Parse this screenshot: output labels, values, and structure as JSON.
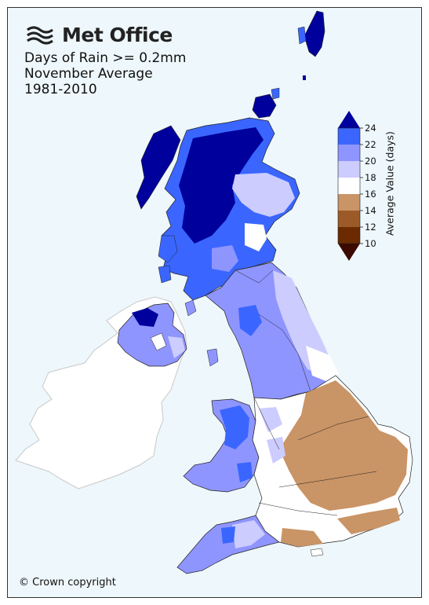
{
  "logo": {
    "text": "Met Office",
    "icon": "met-office-wave-icon"
  },
  "title": {
    "line1": "Days of Rain >= 0.2mm",
    "line2": "November Average",
    "line3": "1981-2010"
  },
  "legend": {
    "label": "Average Value (days)",
    "ticks": [
      "24",
      "22",
      "20",
      "18",
      "16",
      "14",
      "12",
      "10"
    ],
    "colors": {
      "above24": "#00009c",
      "22_24": "#3a66ff",
      "20_22": "#8f95ff",
      "18_20": "#ccccff",
      "16_18": "#ffffff",
      "14_16": "#c99466",
      "12_14": "#9b5a27",
      "10_12": "#6b2a00",
      "below10": "#3b0a00"
    }
  },
  "copyright": "© Crown copyright"
}
